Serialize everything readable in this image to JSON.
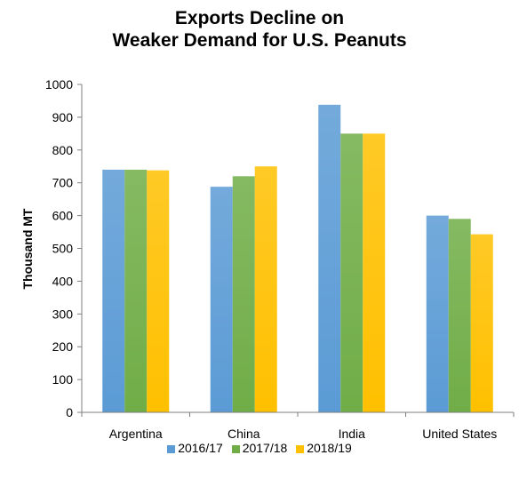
{
  "chart_data": {
    "type": "bar",
    "title_line1": "Exports Decline on",
    "title_line2": "Weaker Demand for U.S. Peanuts",
    "xlabel": "",
    "ylabel": "Thousand MT",
    "ylim": [
      0,
      1000
    ],
    "yticks": [
      0,
      100,
      200,
      300,
      400,
      500,
      600,
      700,
      800,
      900,
      1000
    ],
    "categories": [
      "Argentina",
      "China",
      "India",
      "United States"
    ],
    "series": [
      {
        "name": "2016/17",
        "color": "#5b9bd5",
        "values": [
          740,
          688,
          938,
          600
        ]
      },
      {
        "name": "2017/18",
        "color": "#70ad47",
        "values": [
          740,
          720,
          850,
          590
        ]
      },
      {
        "name": "2018/19",
        "color": "#ffc000",
        "values": [
          738,
          750,
          850,
          543
        ]
      }
    ],
    "grid": false,
    "legend_position": "bottom"
  }
}
